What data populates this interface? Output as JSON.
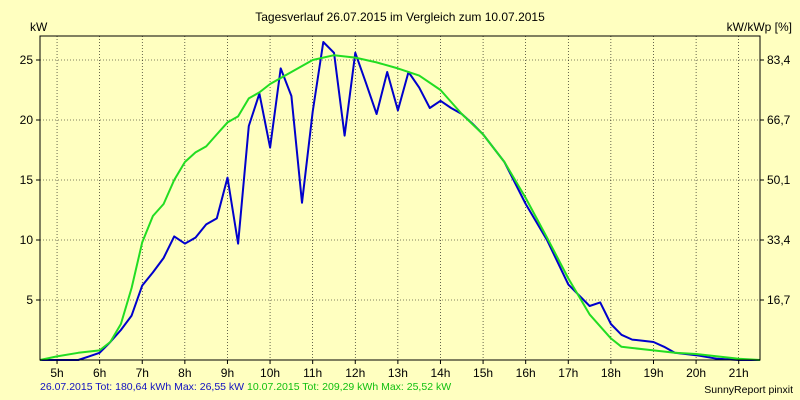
{
  "title": "Tagesverlauf 26.07.2015 im Vergleich zum 10.07.2015",
  "unit_left": "kW",
  "unit_right": "kW/kWp [%]",
  "footer": {
    "series1_text": "26.07.2015 Tot: 180,64 kWh Max: 26,55 kW",
    "series2_text": "10.07.2015 Tot: 209,29 kWh Max: 25,52 kW"
  },
  "credit": "SunnyReport pinxit",
  "colors": {
    "background": "#ffffc0",
    "series1": "#0000cc",
    "series2": "#22dd22",
    "grid": "#000000"
  },
  "chart_data": {
    "type": "line",
    "title": "Tagesverlauf 26.07.2015 im Vergleich zum 10.07.2015",
    "xlabel": "",
    "ylabel": "kW",
    "y2label": "kW/kWp [%]",
    "xlim": [
      4.6,
      21.5
    ],
    "ylim": [
      0,
      27
    ],
    "x_ticks": [
      5,
      6,
      7,
      8,
      9,
      10,
      11,
      12,
      13,
      14,
      15,
      16,
      17,
      18,
      19,
      20,
      21
    ],
    "x_tick_labels": [
      "5h",
      "6h",
      "7h",
      "8h",
      "9h",
      "10h",
      "11h",
      "12h",
      "13h",
      "14h",
      "15h",
      "16h",
      "17h",
      "18h",
      "19h",
      "20h",
      "21h"
    ],
    "y_ticks": [
      5,
      10,
      15,
      20,
      25
    ],
    "y_tick_labels": [
      "5",
      "10",
      "15",
      "20",
      "25"
    ],
    "y2_ticks": [
      5,
      10,
      15,
      20,
      25
    ],
    "y2_tick_labels": [
      "16,7",
      "33,4",
      "50,1",
      "66,7",
      "83,4"
    ],
    "grid": true,
    "series": [
      {
        "name": "26.07.2015",
        "x": [
          4.6,
          5.5,
          5.75,
          6.0,
          6.25,
          6.5,
          6.75,
          7.0,
          7.25,
          7.5,
          7.75,
          8.0,
          8.25,
          8.5,
          8.75,
          9.0,
          9.25,
          9.5,
          9.75,
          10.0,
          10.25,
          10.5,
          10.75,
          11.0,
          11.25,
          11.5,
          11.75,
          12.0,
          12.25,
          12.5,
          12.75,
          13.0,
          13.25,
          13.5,
          13.75,
          14.0,
          14.25,
          14.5,
          14.75,
          15.0,
          15.5,
          16.0,
          16.5,
          17.0,
          17.25,
          17.5,
          17.75,
          18.0,
          18.25,
          18.5,
          18.75,
          19.0,
          19.25,
          19.5,
          20.0,
          20.5,
          21.0,
          21.5
        ],
        "y": [
          0,
          0,
          0.3,
          0.6,
          1.5,
          2.5,
          3.7,
          6.2,
          7.3,
          8.5,
          10.3,
          9.7,
          10.2,
          11.3,
          11.8,
          15.2,
          9.7,
          19.5,
          22.2,
          17.7,
          24.3,
          22.0,
          13.1,
          20.7,
          26.5,
          25.6,
          18.7,
          25.6,
          23.1,
          20.5,
          24.0,
          20.8,
          24.0,
          22.7,
          21.0,
          21.6,
          21.0,
          20.5,
          19.7,
          18.8,
          16.5,
          13.0,
          10.0,
          6.3,
          5.4,
          4.5,
          4.8,
          3.0,
          2.1,
          1.7,
          1.6,
          1.5,
          1.1,
          0.6,
          0.4,
          0.1,
          0,
          0
        ]
      },
      {
        "name": "10.07.2015",
        "x": [
          4.6,
          5.0,
          5.5,
          6.0,
          6.25,
          6.5,
          6.75,
          7.0,
          7.25,
          7.5,
          7.75,
          8.0,
          8.25,
          8.5,
          8.75,
          9.0,
          9.25,
          9.5,
          9.75,
          10.0,
          10.5,
          11.0,
          11.5,
          12.0,
          12.5,
          13.0,
          13.5,
          14.0,
          14.5,
          15.0,
          15.5,
          16.0,
          16.5,
          17.0,
          17.5,
          18.0,
          18.25,
          18.5,
          19.0,
          19.5,
          20.0,
          20.5,
          21.0,
          21.5
        ],
        "y": [
          0,
          0.3,
          0.6,
          0.8,
          1.5,
          3.0,
          6.0,
          9.8,
          12.0,
          13.0,
          15.0,
          16.5,
          17.3,
          17.8,
          18.8,
          19.8,
          20.3,
          21.8,
          22.3,
          23.0,
          24.0,
          25.0,
          25.4,
          25.2,
          24.8,
          24.3,
          23.7,
          22.5,
          20.5,
          18.8,
          16.5,
          13.5,
          10.2,
          6.8,
          3.8,
          1.8,
          1.1,
          1.0,
          0.8,
          0.6,
          0.5,
          0.3,
          0.1,
          0
        ]
      }
    ]
  }
}
